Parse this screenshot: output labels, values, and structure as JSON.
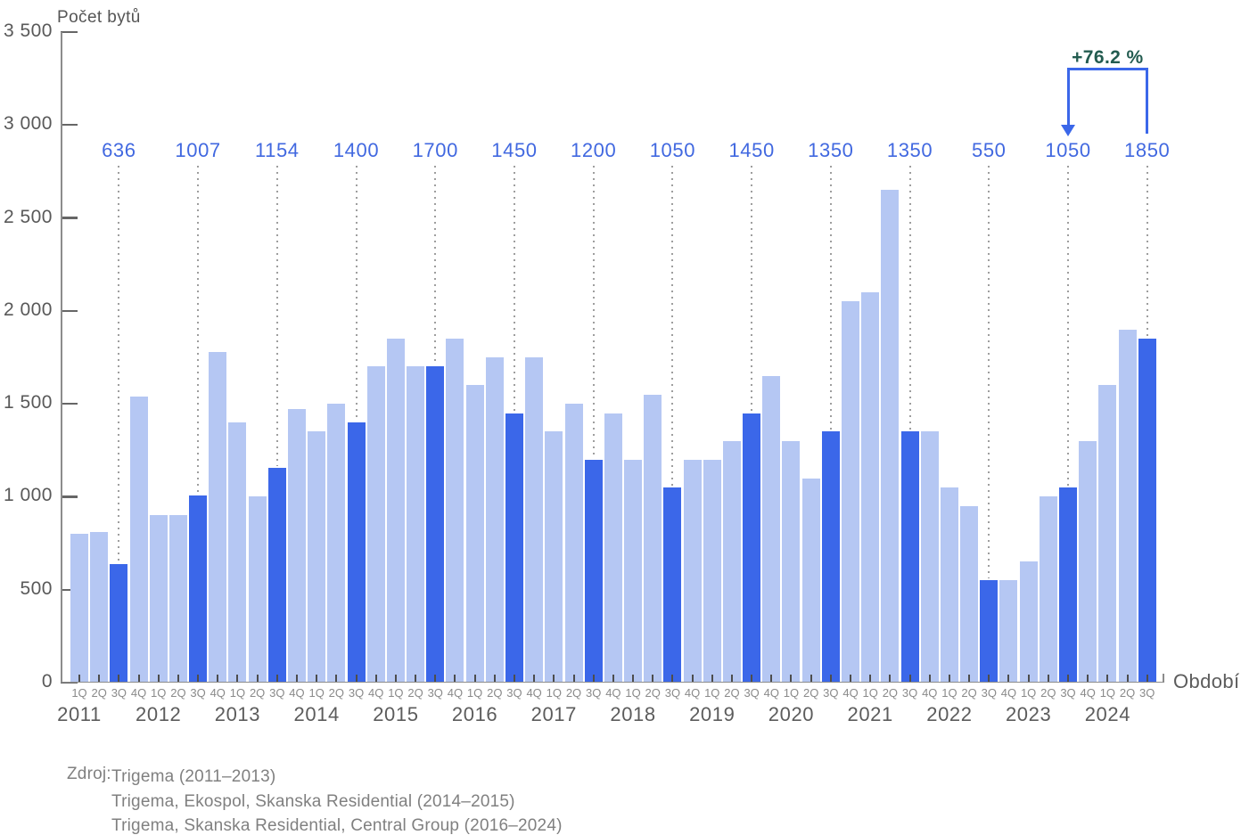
{
  "chart": {
    "y_axis_title": "Počet bytů",
    "x_axis_title": "Období",
    "annotation_label": "+76.2 %"
  },
  "source": {
    "label": "Zdroj:",
    "lines": [
      "Trigema (2011–2013)",
      "Trigema, Ekospol, Skanska Residential (2014–2015)",
      "Trigema, Skanska Residential, Central Group (2016–2024)"
    ]
  },
  "colors": {
    "bar_light": "#b5c7f3",
    "bar_dark": "#3b67e9",
    "value_label": "#4168e0",
    "annotation_text": "#235c50",
    "annotation_arrow": "#3b67e9",
    "dotted_line": "#9e9e9e",
    "axis": "#8c8c8c",
    "axis_tick": "#666666",
    "bar_tick": "#4d4d4d",
    "y_tick_text": "#595959",
    "quarter_text": "#8a8a8a",
    "year_text": "#5c5c5c",
    "source_text": "#808080"
  },
  "chart_data": {
    "type": "bar",
    "title": "",
    "ylabel": "Počet bytů",
    "xlabel": "Období",
    "ylim": [
      0,
      3500
    ],
    "ytick_interval": 500,
    "ytick_labels": [
      "0",
      "500",
      "1 000",
      "1 500",
      "2 000",
      "2 500",
      "3 000",
      "3 500"
    ],
    "grid": false,
    "legend": false,
    "highlight_quarter": "3Q",
    "annotation": {
      "text": "+76.2 %",
      "from": "3Q 2023",
      "to": "3Q 2024"
    },
    "years": [
      {
        "year": "2011",
        "quarters": [
          "1Q",
          "2Q",
          "3Q",
          "4Q"
        ],
        "values": [
          800,
          810,
          636,
          1540
        ],
        "highlight_label": "636"
      },
      {
        "year": "2012",
        "quarters": [
          "1Q",
          "2Q",
          "3Q",
          "4Q"
        ],
        "values": [
          900,
          900,
          1007,
          1780
        ],
        "highlight_label": "1007"
      },
      {
        "year": "2013",
        "quarters": [
          "1Q",
          "2Q",
          "3Q",
          "4Q"
        ],
        "values": [
          1400,
          1000,
          1154,
          1470
        ],
        "highlight_label": "1154"
      },
      {
        "year": "2014",
        "quarters": [
          "1Q",
          "2Q",
          "3Q",
          "4Q"
        ],
        "values": [
          1350,
          1500,
          1400,
          1700
        ],
        "highlight_label": "1400"
      },
      {
        "year": "2015",
        "quarters": [
          "1Q",
          "2Q",
          "3Q",
          "4Q"
        ],
        "values": [
          1850,
          1700,
          1700,
          1850
        ],
        "highlight_label": "1700"
      },
      {
        "year": "2016",
        "quarters": [
          "1Q",
          "2Q",
          "3Q",
          "4Q"
        ],
        "values": [
          1600,
          1750,
          1450,
          1750
        ],
        "highlight_label": "1450"
      },
      {
        "year": "2017",
        "quarters": [
          "1Q",
          "2Q",
          "3Q",
          "4Q"
        ],
        "values": [
          1350,
          1500,
          1200,
          1450
        ],
        "highlight_label": "1200"
      },
      {
        "year": "2018",
        "quarters": [
          "1Q",
          "2Q",
          "3Q",
          "4Q"
        ],
        "values": [
          1200,
          1550,
          1050,
          1200
        ],
        "highlight_label": "1050"
      },
      {
        "year": "2019",
        "quarters": [
          "1Q",
          "2Q",
          "3Q",
          "4Q"
        ],
        "values": [
          1200,
          1300,
          1450,
          1650
        ],
        "highlight_label": "1450"
      },
      {
        "year": "2020",
        "quarters": [
          "1Q",
          "2Q",
          "3Q",
          "4Q"
        ],
        "values": [
          1300,
          1100,
          1350,
          2050
        ],
        "highlight_label": "1350"
      },
      {
        "year": "2021",
        "quarters": [
          "1Q",
          "2Q",
          "3Q",
          "4Q"
        ],
        "values": [
          2100,
          2650,
          1350,
          1350
        ],
        "highlight_label": "1350"
      },
      {
        "year": "2022",
        "quarters": [
          "1Q",
          "2Q",
          "3Q",
          "4Q"
        ],
        "values": [
          1050,
          950,
          550,
          550
        ],
        "highlight_label": "550"
      },
      {
        "year": "2023",
        "quarters": [
          "1Q",
          "2Q",
          "3Q",
          "4Q"
        ],
        "values": [
          650,
          1000,
          1050,
          1300
        ],
        "highlight_label": "1050"
      },
      {
        "year": "2024",
        "quarters": [
          "1Q",
          "2Q",
          "3Q"
        ],
        "values": [
          1600,
          1900,
          1850
        ],
        "highlight_label": "1850"
      }
    ]
  }
}
